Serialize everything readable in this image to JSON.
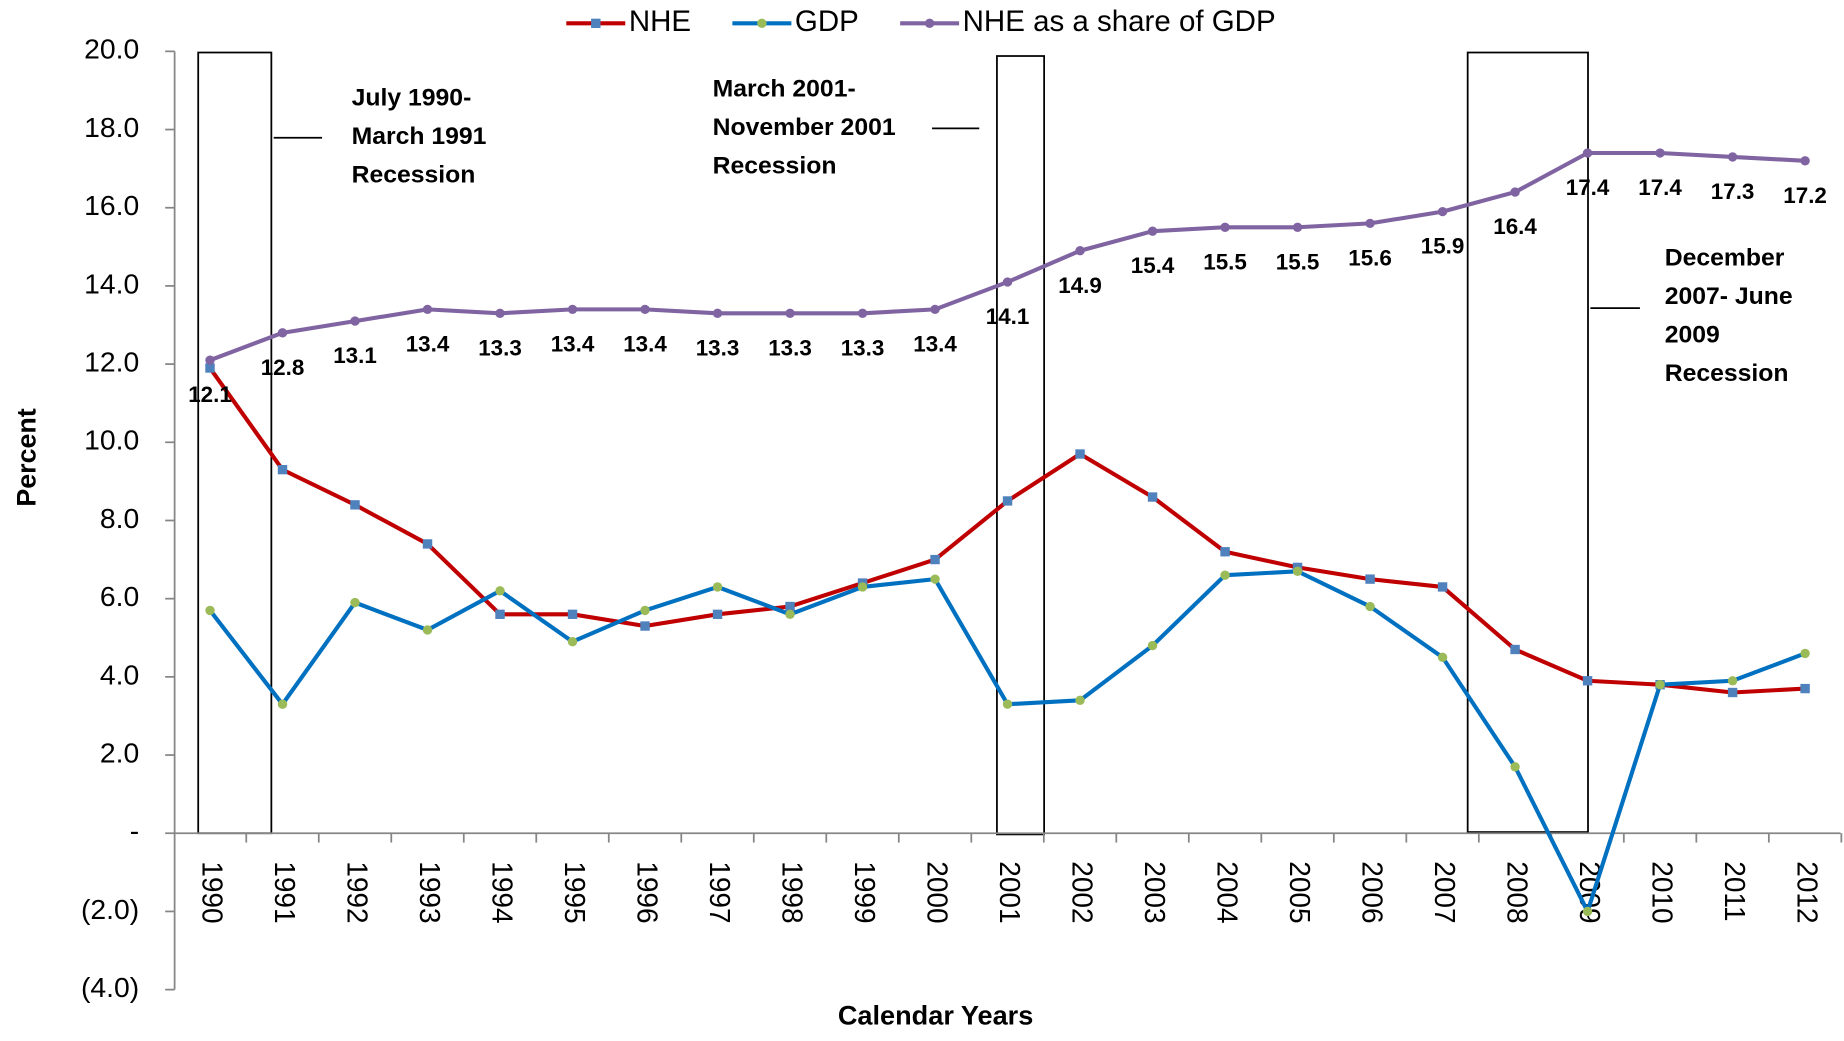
{
  "chart_data": {
    "type": "line",
    "x_label": "Calendar Years",
    "y_label": "Percent",
    "categories": [
      "1990",
      "1991",
      "1992",
      "1993",
      "1994",
      "1995",
      "1996",
      "1997",
      "1998",
      "1999",
      "2000",
      "2001",
      "2002",
      "2003",
      "2004",
      "2005",
      "2006",
      "2007",
      "2008",
      "2009",
      "2010",
      "2011",
      "2012"
    ],
    "series": [
      {
        "name": "NHE",
        "color": "#c00000",
        "marker_color": "#4f81bd",
        "marker": "square",
        "values": [
          11.9,
          9.3,
          8.4,
          7.4,
          5.6,
          5.6,
          5.3,
          5.6,
          5.8,
          6.4,
          7.0,
          8.5,
          9.7,
          8.6,
          7.2,
          6.8,
          6.5,
          6.3,
          4.7,
          3.9,
          3.8,
          3.6,
          3.7
        ]
      },
      {
        "name": "GDP",
        "color": "#0070c0",
        "marker_color": "#9bbb59",
        "marker": "circle",
        "values": [
          5.7,
          3.3,
          5.9,
          5.2,
          6.2,
          4.9,
          5.7,
          6.3,
          5.6,
          6.3,
          6.5,
          3.3,
          3.4,
          4.8,
          6.6,
          6.7,
          5.8,
          4.5,
          1.7,
          -2.0,
          3.8,
          3.9,
          4.6
        ]
      },
      {
        "name": "NHE as a share of GDP",
        "color": "#8064a2",
        "marker_color": "#8064a2",
        "marker": "circle",
        "data_labels": true,
        "values": [
          12.1,
          12.8,
          13.1,
          13.4,
          13.3,
          13.4,
          13.4,
          13.3,
          13.3,
          13.3,
          13.4,
          14.1,
          14.9,
          15.4,
          15.5,
          15.5,
          15.6,
          15.9,
          16.4,
          17.4,
          17.4,
          17.3,
          17.2
        ]
      }
    ],
    "ylim": [
      -4,
      20
    ],
    "yticks": [
      {
        "value": -4,
        "label": "(4.0)"
      },
      {
        "value": -2,
        "label": "(2.0)"
      },
      {
        "value": 0,
        "label": "-"
      },
      {
        "value": 2,
        "label": "2.0"
      },
      {
        "value": 4,
        "label": "4.0"
      },
      {
        "value": 6,
        "label": "6.0"
      },
      {
        "value": 8,
        "label": "8.0"
      },
      {
        "value": 10,
        "label": "10.0"
      },
      {
        "value": 12,
        "label": "12.0"
      },
      {
        "value": 14,
        "label": "14.0"
      },
      {
        "value": 16,
        "label": "16.0"
      },
      {
        "value": 18,
        "label": "18.0"
      },
      {
        "value": 20,
        "label": "20.0"
      }
    ],
    "legend": "top",
    "annotations": [
      {
        "lines": [
          "July 1990-",
          "March 1991",
          "Recession"
        ]
      },
      {
        "lines": [
          "March 2001-",
          "November 2001",
          "Recession"
        ]
      },
      {
        "lines": [
          "December",
          "2007- June",
          "2009",
          "Recession"
        ]
      }
    ]
  }
}
